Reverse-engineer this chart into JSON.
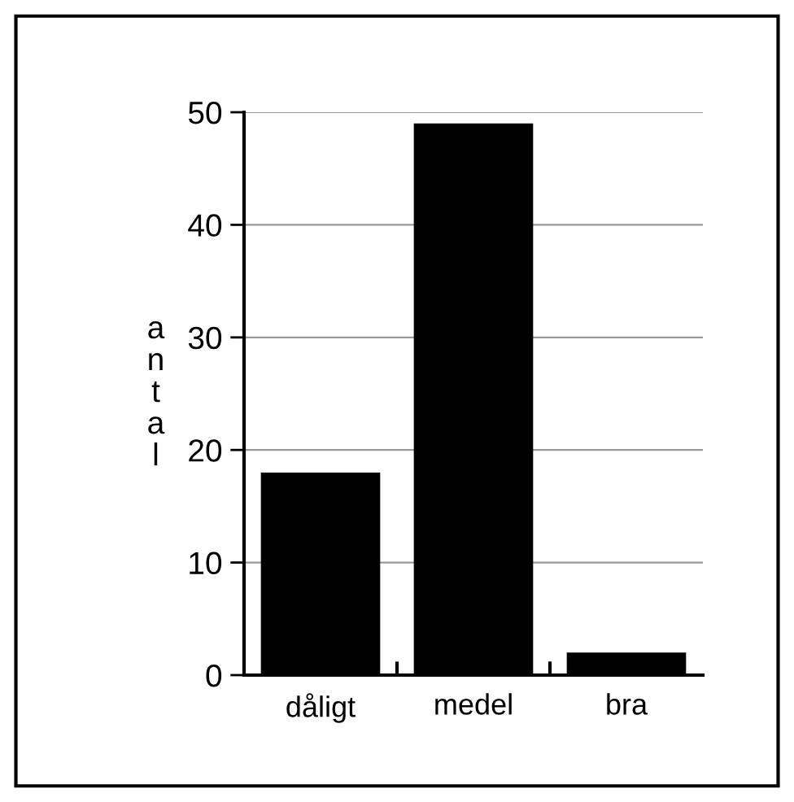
{
  "chart_data": {
    "type": "bar",
    "ylabel": "antal",
    "categories": [
      "dåligt",
      "medel",
      "bra"
    ],
    "values": [
      18,
      49,
      2
    ],
    "color": "#000000",
    "ylim": [
      0,
      50
    ],
    "yticks": [
      0,
      10,
      20,
      30,
      40,
      50
    ],
    "grid": "y",
    "legend": false
  }
}
